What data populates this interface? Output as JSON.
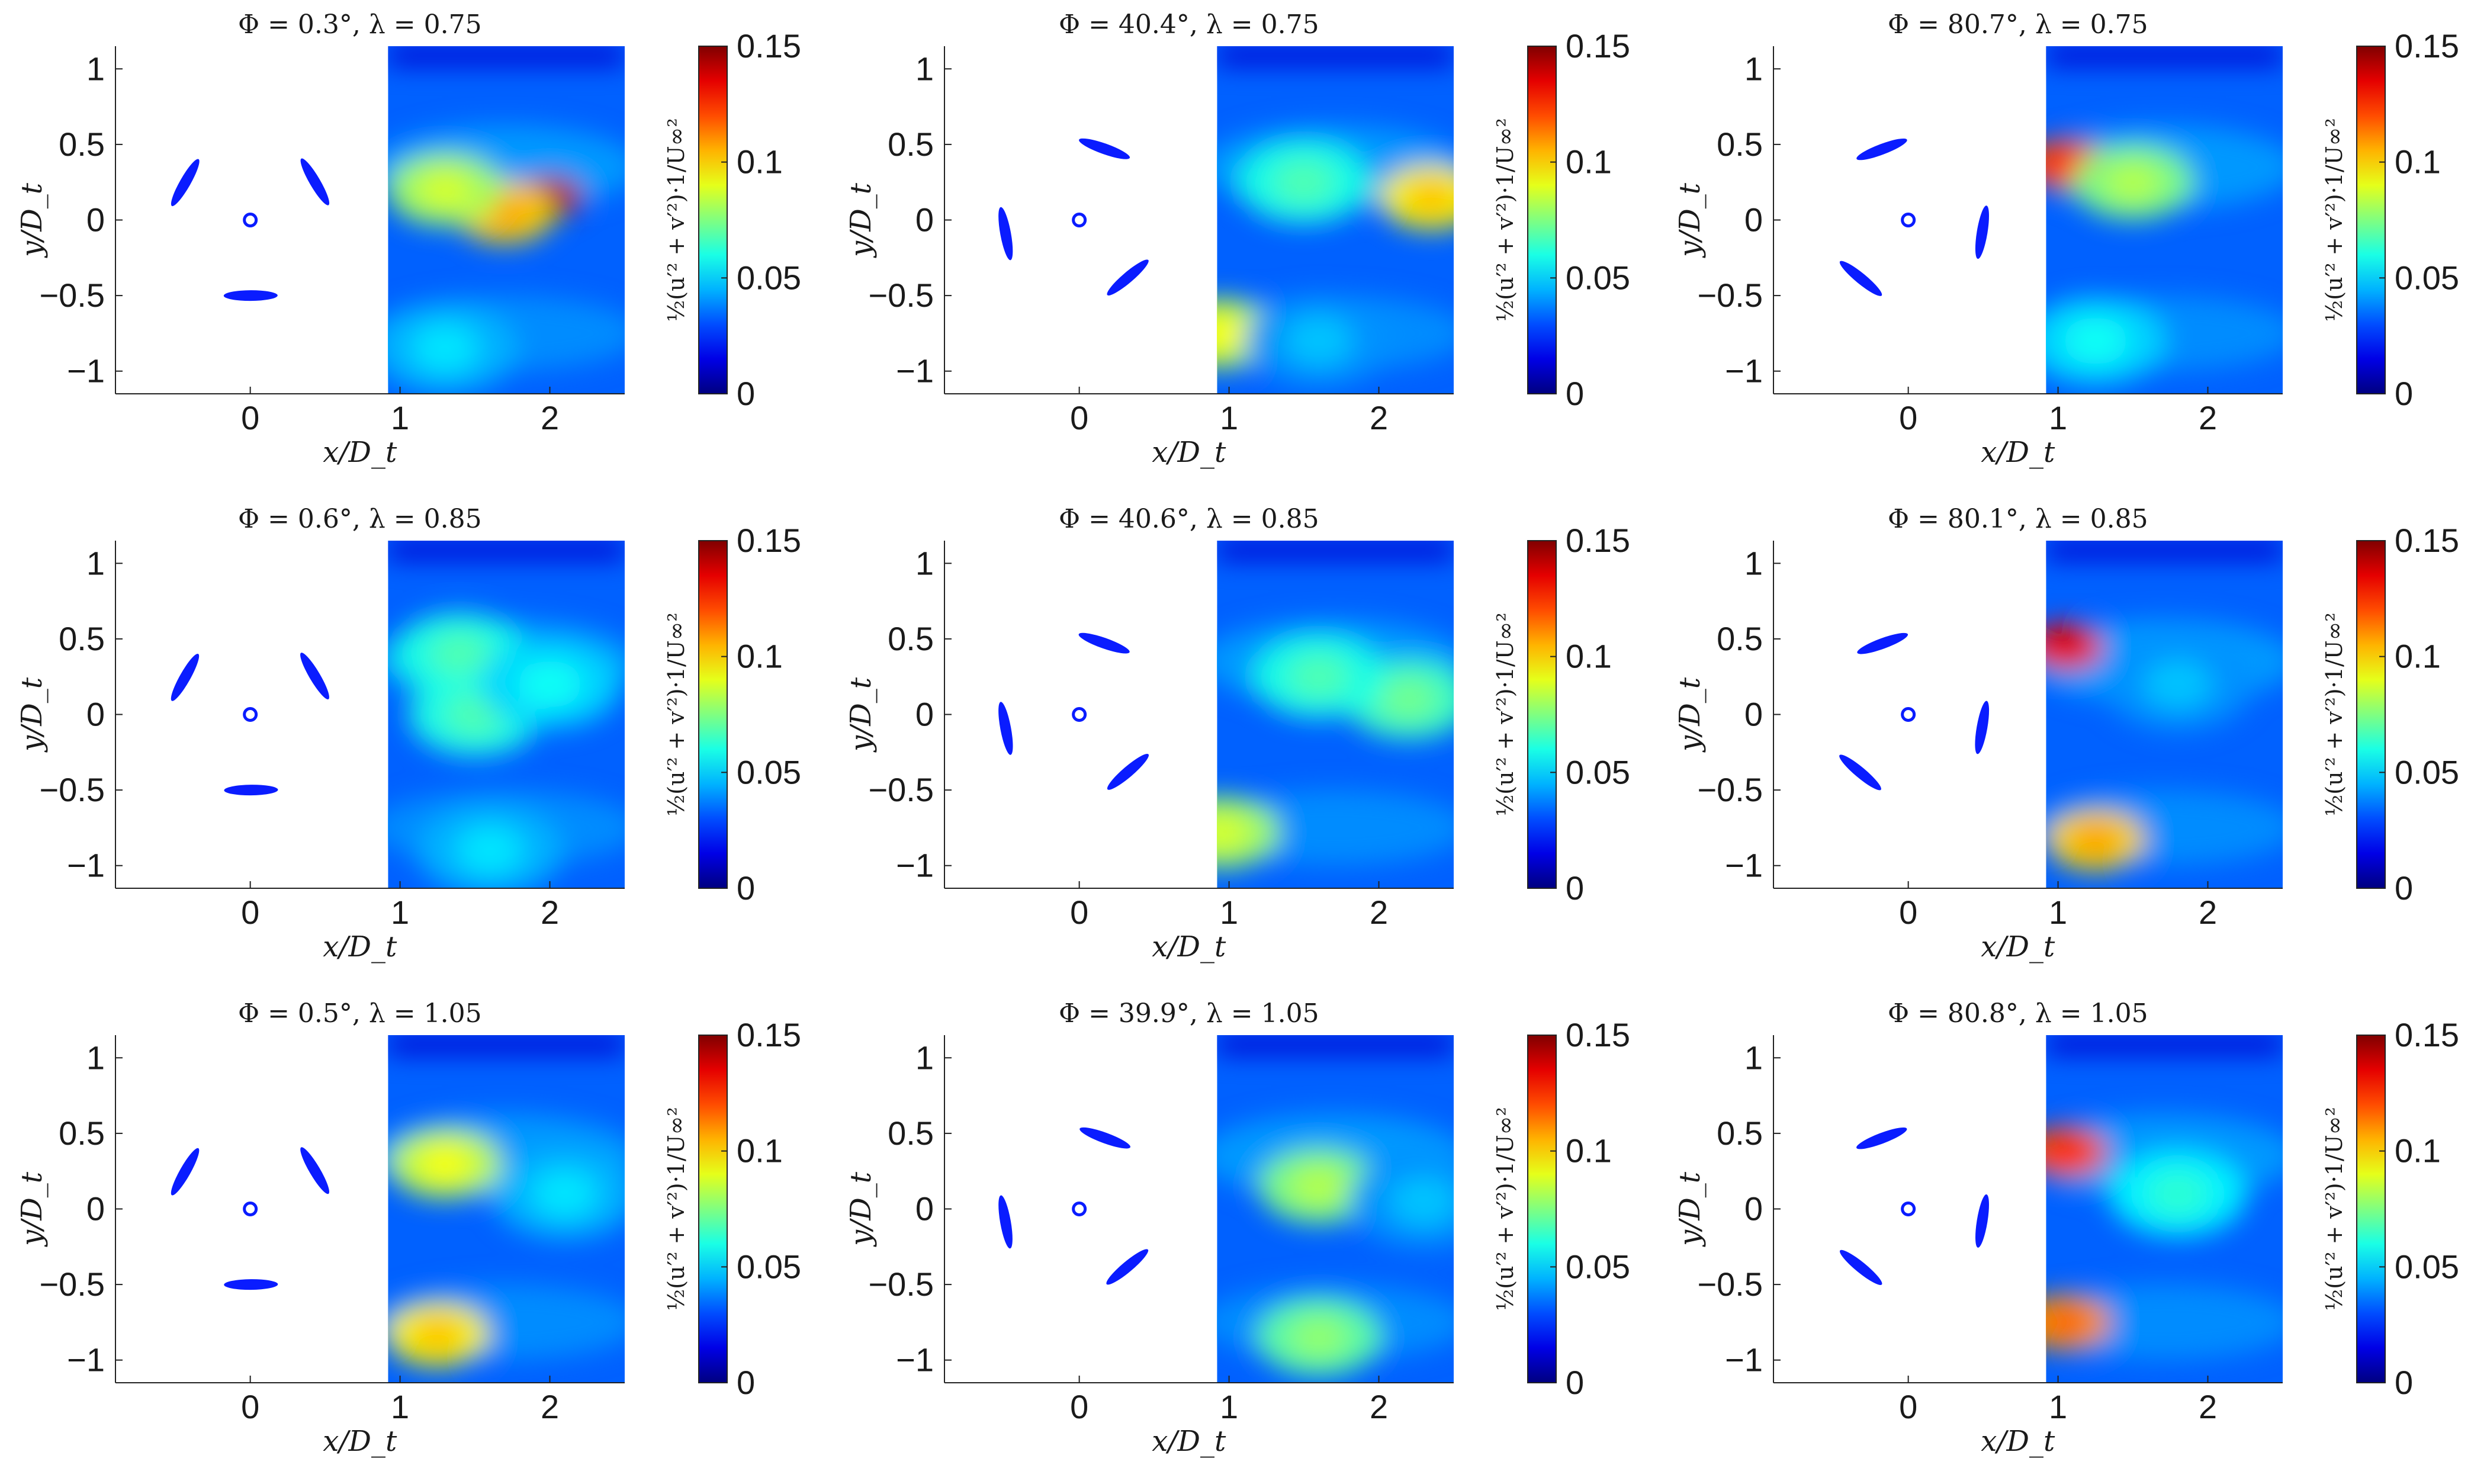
{
  "figure": {
    "xlabel": "x/D_t",
    "ylabel": "y/D_t",
    "colorbar_label": "½(u′² + v′²)·1/U∞²",
    "x_ticks": [
      "0",
      "1",
      "2"
    ],
    "y_ticks": [
      "1",
      "0.5",
      "0",
      "-0.5",
      "-1"
    ],
    "cb_ticks": [
      "0.15",
      "0.1",
      "0.05",
      "0"
    ]
  },
  "chart_data": [
    {
      "type": "heatmap",
      "title": "Φ = 0.3°, λ = 0.75",
      "phi_deg": 0.3,
      "lambda": 0.75,
      "xlabel": "x/D_t",
      "ylabel": "y/D_t",
      "colorbar": "½(u′² + v′²)·1/U∞²",
      "xlim": [
        -0.9,
        2.5
      ],
      "ylim": [
        -1.15,
        1.15
      ],
      "clim": [
        0,
        0.15
      ],
      "colormap": "jet",
      "hotspots": [
        {
          "x": 2.0,
          "y": 0.15,
          "value": 0.14
        },
        {
          "x": 1.7,
          "y": 0.05,
          "value": 0.1
        },
        {
          "x": 1.3,
          "y": 0.2,
          "value": 0.08
        },
        {
          "x": 1.3,
          "y": -0.85,
          "value": 0.045
        }
      ],
      "blade_angles_deg": [
        0.3,
        120.3,
        240.3
      ]
    },
    {
      "type": "heatmap",
      "title": "Φ = 40.4°, λ = 0.75",
      "phi_deg": 40.4,
      "lambda": 0.75,
      "xlabel": "x/D_t",
      "ylabel": "y/D_t",
      "colorbar": "½(u′² + v′²)·1/U∞²",
      "xlim": [
        -0.9,
        2.5
      ],
      "ylim": [
        -1.15,
        1.15
      ],
      "clim": [
        0,
        0.15
      ],
      "colormap": "jet",
      "hotspots": [
        {
          "x": 2.35,
          "y": 0.15,
          "value": 0.095
        },
        {
          "x": 1.5,
          "y": 0.25,
          "value": 0.06
        },
        {
          "x": 0.95,
          "y": -0.75,
          "value": 0.085
        },
        {
          "x": 1.6,
          "y": -0.8,
          "value": 0.04
        }
      ],
      "blade_angles_deg": [
        40.4,
        160.4,
        280.4
      ]
    },
    {
      "type": "heatmap",
      "title": "Φ = 80.7°, λ = 0.75",
      "phi_deg": 80.7,
      "lambda": 0.75,
      "xlabel": "x/D_t",
      "ylabel": "y/D_t",
      "colorbar": "½(u′² + v′²)·1/U∞²",
      "xlim": [
        -0.9,
        2.5
      ],
      "ylim": [
        -1.15,
        1.15
      ],
      "clim": [
        0,
        0.15
      ],
      "colormap": "jet",
      "hotspots": [
        {
          "x": 1.05,
          "y": 0.37,
          "value": 0.12
        },
        {
          "x": 1.5,
          "y": 0.25,
          "value": 0.075
        },
        {
          "x": 1.25,
          "y": -0.8,
          "value": 0.05
        }
      ],
      "blade_angles_deg": [
        80.7,
        200.7,
        320.7
      ]
    },
    {
      "type": "heatmap",
      "title": "Φ = 0.6°, λ = 0.85",
      "phi_deg": 0.6,
      "lambda": 0.85,
      "xlabel": "x/D_t",
      "ylabel": "y/D_t",
      "colorbar": "½(u′² + v′²)·1/U∞²",
      "xlim": [
        -0.9,
        2.5
      ],
      "ylim": [
        -1.15,
        1.15
      ],
      "clim": [
        0,
        0.15
      ],
      "colormap": "jet",
      "hotspots": [
        {
          "x": 1.4,
          "y": 0.4,
          "value": 0.06
        },
        {
          "x": 1.5,
          "y": 0.0,
          "value": 0.06
        },
        {
          "x": 2.0,
          "y": 0.2,
          "value": 0.05
        },
        {
          "x": 1.6,
          "y": -0.9,
          "value": 0.045
        }
      ],
      "blade_angles_deg": [
        0.6,
        120.6,
        240.6
      ]
    },
    {
      "type": "heatmap",
      "title": "Φ = 40.6°, λ = 0.85",
      "phi_deg": 40.6,
      "lambda": 0.85,
      "xlabel": "x/D_t",
      "ylabel": "y/D_t",
      "colorbar": "½(u′² + v′²)·1/U∞²",
      "xlim": [
        -0.9,
        2.5
      ],
      "ylim": [
        -1.15,
        1.15
      ],
      "clim": [
        0,
        0.15
      ],
      "colormap": "jet",
      "hotspots": [
        {
          "x": 2.2,
          "y": 0.1,
          "value": 0.065
        },
        {
          "x": 1.6,
          "y": 0.25,
          "value": 0.06
        },
        {
          "x": 0.95,
          "y": -0.78,
          "value": 0.08
        }
      ],
      "blade_angles_deg": [
        40.6,
        160.6,
        280.6
      ]
    },
    {
      "type": "heatmap",
      "title": "Φ = 80.1°, λ = 0.85",
      "phi_deg": 80.1,
      "lambda": 0.85,
      "xlabel": "x/D_t",
      "ylabel": "y/D_t",
      "colorbar": "½(u′² + v′²)·1/U∞²",
      "xlim": [
        -0.9,
        2.5
      ],
      "ylim": [
        -1.15,
        1.15
      ],
      "clim": [
        0,
        0.15
      ],
      "colormap": "jet",
      "hotspots": [
        {
          "x": 1.05,
          "y": 0.45,
          "value": 0.13
        },
        {
          "x": 1.25,
          "y": -0.83,
          "value": 0.1
        },
        {
          "x": 1.8,
          "y": 0.2,
          "value": 0.04
        }
      ],
      "blade_angles_deg": [
        80.1,
        200.1,
        320.1
      ]
    },
    {
      "type": "heatmap",
      "title": "Φ = 0.5°, λ = 1.05",
      "phi_deg": 0.5,
      "lambda": 1.05,
      "xlabel": "x/D_t",
      "ylabel": "y/D_t",
      "colorbar": "½(u′² + v′²)·1/U∞²",
      "xlim": [
        -0.9,
        2.5
      ],
      "ylim": [
        -1.15,
        1.15
      ],
      "clim": [
        0,
        0.15
      ],
      "colormap": "jet",
      "hotspots": [
        {
          "x": 1.3,
          "y": 0.3,
          "value": 0.085
        },
        {
          "x": 1.25,
          "y": -0.83,
          "value": 0.095
        },
        {
          "x": 2.1,
          "y": 0.1,
          "value": 0.045
        }
      ],
      "blade_angles_deg": [
        0.5,
        120.5,
        240.5
      ]
    },
    {
      "type": "heatmap",
      "title": "Φ = 39.9°, λ = 1.05",
      "phi_deg": 39.9,
      "lambda": 1.05,
      "xlabel": "x/D_t",
      "ylabel": "y/D_t",
      "colorbar": "½(u′² + v′²)·1/U∞²",
      "xlim": [
        -0.9,
        2.5
      ],
      "ylim": [
        -1.15,
        1.15
      ],
      "clim": [
        0,
        0.15
      ],
      "colormap": "jet",
      "hotspots": [
        {
          "x": 1.6,
          "y": 0.15,
          "value": 0.075
        },
        {
          "x": 1.6,
          "y": -0.85,
          "value": 0.07
        },
        {
          "x": 2.3,
          "y": 0.05,
          "value": 0.04
        }
      ],
      "blade_angles_deg": [
        39.9,
        159.9,
        279.9
      ]
    },
    {
      "type": "heatmap",
      "title": "Φ = 80.8°, λ = 1.05",
      "phi_deg": 80.8,
      "lambda": 1.05,
      "xlabel": "x/D_t",
      "ylabel": "y/D_t",
      "colorbar": "½(u′² + v′²)·1/U∞²",
      "xlim": [
        -0.9,
        2.5
      ],
      "ylim": [
        -1.15,
        1.15
      ],
      "clim": [
        0,
        0.15
      ],
      "colormap": "jet",
      "hotspots": [
        {
          "x": 1.05,
          "y": 0.38,
          "value": 0.12
        },
        {
          "x": 1.05,
          "y": -0.75,
          "value": 0.11
        },
        {
          "x": 1.8,
          "y": 0.1,
          "value": 0.055
        }
      ],
      "blade_angles_deg": [
        80.8,
        200.8,
        320.8
      ]
    }
  ]
}
